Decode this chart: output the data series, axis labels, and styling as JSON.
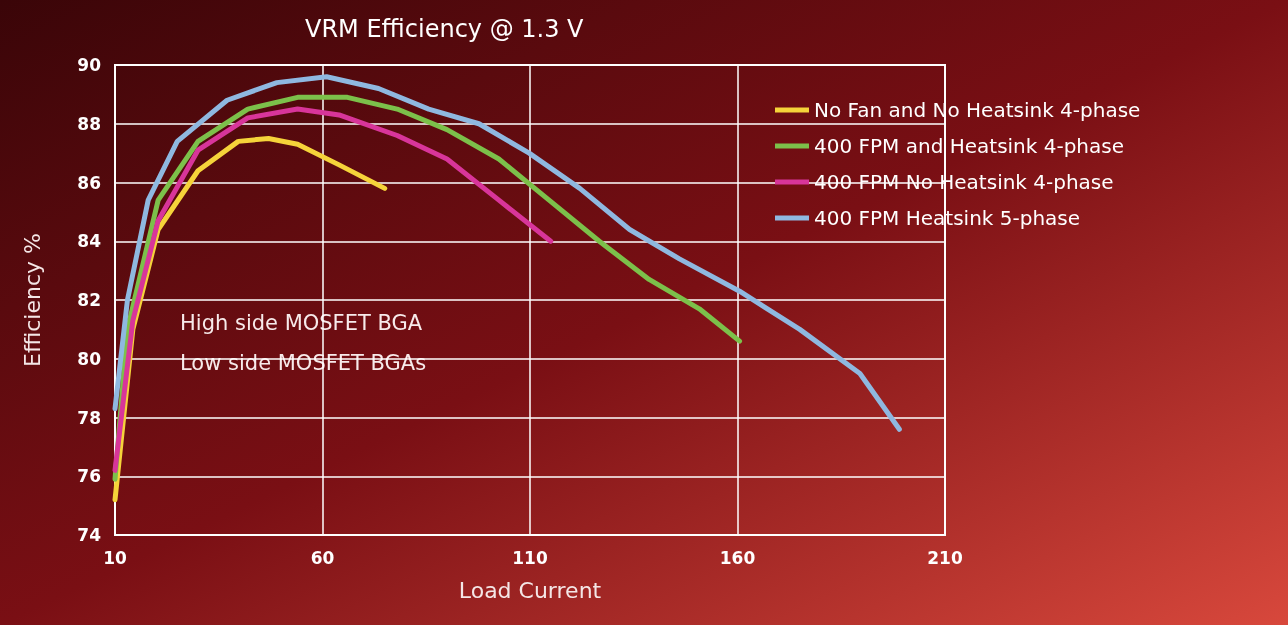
{
  "chart_data": {
    "type": "line",
    "title": "VRM Efficiency @ 1.3 V",
    "xlabel": "Load Current",
    "ylabel": "Efficiency %",
    "xlim": [
      10,
      210
    ],
    "xticks": [
      10,
      60,
      110,
      160,
      210
    ],
    "ylim": [
      74,
      90
    ],
    "yticks": [
      74,
      76,
      78,
      80,
      82,
      84,
      86,
      88,
      90
    ],
    "grid": true,
    "legend": "right",
    "marker": "none",
    "annotations": [
      "High side MOSFET BGA",
      "Low side MOSFET BGAs"
    ],
    "series": [
      {
        "name": "No Fan and No Heatsink 4-phase",
        "color": "#f5d33a",
        "x": [
          10,
          14.3,
          20.4,
          30,
          39.7,
          47,
          54,
          64,
          75
        ],
        "values": [
          75.2,
          81,
          84.4,
          86.4,
          87.4,
          87.5,
          87.3,
          86.6,
          85.8
        ]
      },
      {
        "name": "400 FPM and Heatsink 4-phase",
        "color": "#7cc04a",
        "x": [
          10,
          13,
          20.4,
          30,
          42,
          54,
          66,
          78,
          90,
          102.5,
          114.6,
          126.7,
          138.7,
          150.8,
          160.5
        ],
        "values": [
          75.9,
          81,
          85.4,
          87.4,
          88.5,
          88.9,
          88.9,
          88.5,
          87.8,
          86.8,
          85.4,
          84,
          82.7,
          81.7,
          80.6
        ]
      },
      {
        "name": "400 FPM No Heatsink 4-phase",
        "color": "#d8359a",
        "x": [
          10,
          14.3,
          20.4,
          30,
          42,
          54,
          64,
          78,
          90,
          102.5,
          115
        ],
        "values": [
          76.2,
          81.3,
          84.7,
          87.1,
          88.2,
          88.5,
          88.3,
          87.6,
          86.8,
          85.4,
          84
        ]
      },
      {
        "name": "400 FPM Heatsink 5-phase",
        "color": "#8fb8e0",
        "x": [
          10,
          13,
          18,
          25,
          37,
          49,
          61,
          73.5,
          85.6,
          97.7,
          109.8,
          122,
          134,
          146,
          160.5,
          175,
          189.5,
          199
        ],
        "values": [
          78.3,
          82,
          85.4,
          87.4,
          88.8,
          89.4,
          89.6,
          89.2,
          88.5,
          88,
          87,
          85.8,
          84.4,
          83.4,
          82.3,
          81,
          79.5,
          77.6
        ]
      }
    ]
  }
}
